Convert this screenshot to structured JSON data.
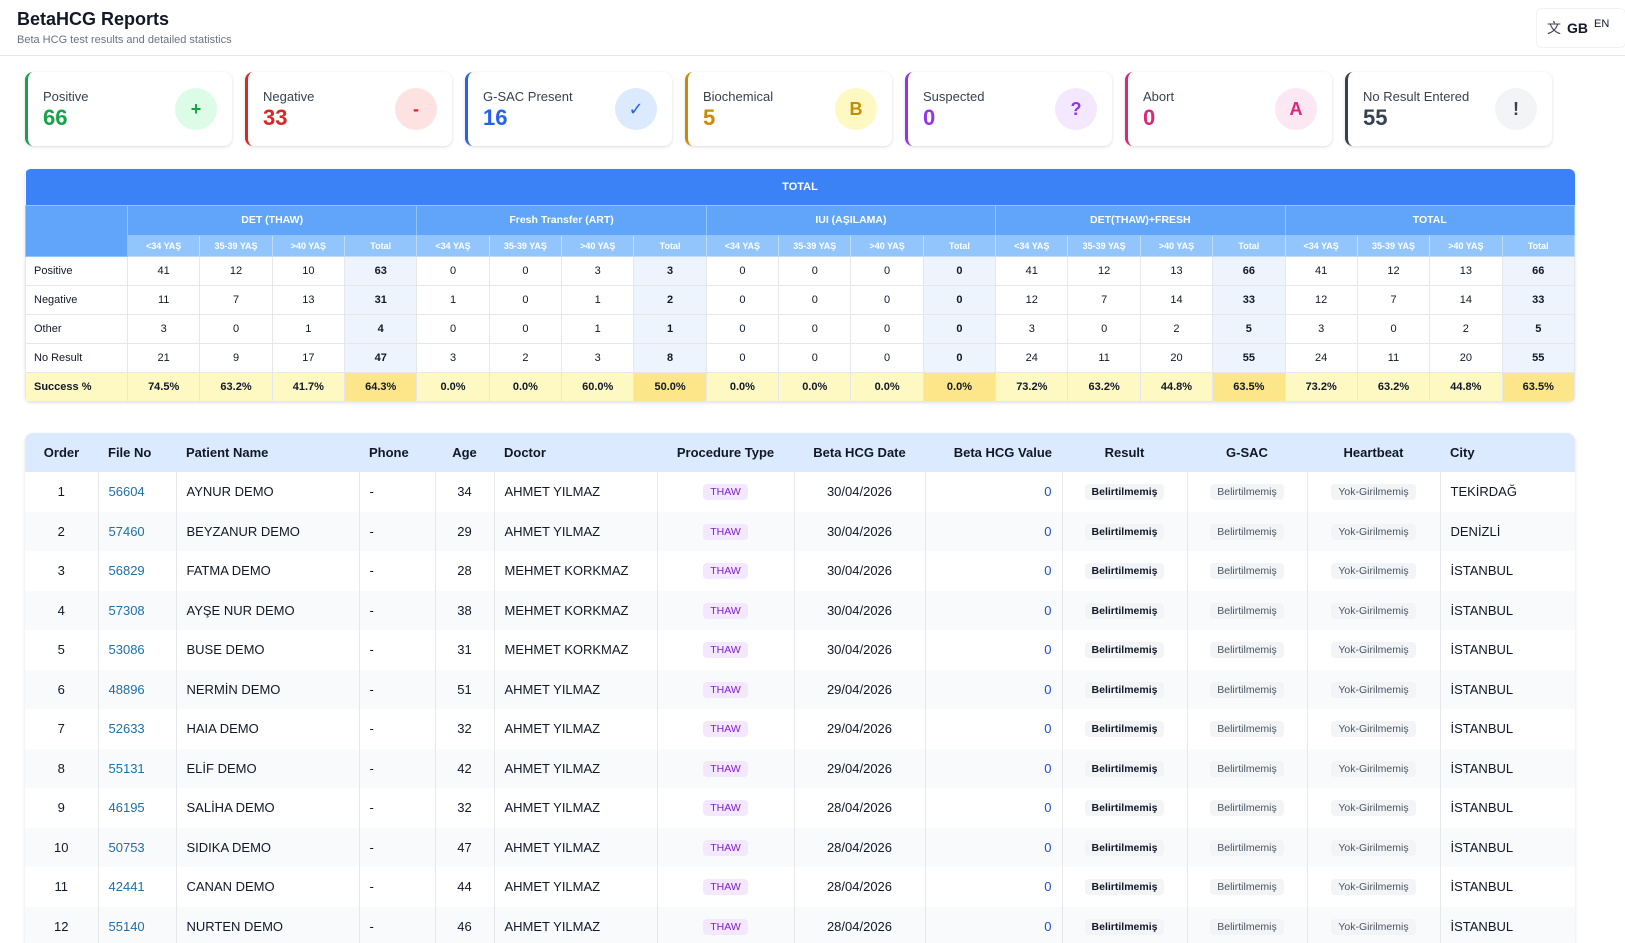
{
  "header": {
    "title": "BetaHCG Reports",
    "subtitle": "Beta HCG test results and detailed statistics",
    "lang_icon": "translate-icon",
    "lang_flag": "GB",
    "lang_code": "EN"
  },
  "cards": [
    {
      "label": "Positive",
      "value": "66",
      "icon": "+",
      "color": "#16a34a",
      "bg": "#dcfce7"
    },
    {
      "label": "Negative",
      "value": "33",
      "icon": "-",
      "color": "#dc2626",
      "bg": "#fee2e2"
    },
    {
      "label": "G-SAC Present",
      "value": "16",
      "icon": "✓",
      "color": "#2563eb",
      "bg": "#dbeafe"
    },
    {
      "label": "Biochemical",
      "value": "5",
      "icon": "B",
      "color": "#ca8a04",
      "bg": "#fef9c3"
    },
    {
      "label": "Suspected",
      "value": "0",
      "icon": "?",
      "color": "#9333ea",
      "bg": "#f3e8ff"
    },
    {
      "label": "Abort",
      "value": "0",
      "icon": "A",
      "color": "#db2777",
      "bg": "#fce7f3"
    },
    {
      "label": "No Result Entered",
      "value": "55",
      "icon": "!",
      "color": "#374151",
      "bg": "#f3f4f6"
    }
  ],
  "stats": {
    "title": "TOTAL",
    "groups": [
      "DET (THAW)",
      "Fresh Transfer (ART)",
      "IUI (AŞILAMA)",
      "DET(THAW)+FRESH",
      "TOTAL"
    ],
    "subheaders": [
      "<34 YAŞ",
      "35-39 YAŞ",
      ">40 YAŞ",
      "Total"
    ],
    "rows": [
      {
        "label": "Positive",
        "values": [
          "41",
          "12",
          "10",
          "63",
          "0",
          "0",
          "3",
          "3",
          "0",
          "0",
          "0",
          "0",
          "41",
          "12",
          "13",
          "66",
          "41",
          "12",
          "13",
          "66"
        ]
      },
      {
        "label": "Negative",
        "values": [
          "11",
          "7",
          "13",
          "31",
          "1",
          "0",
          "1",
          "2",
          "0",
          "0",
          "0",
          "0",
          "12",
          "7",
          "14",
          "33",
          "12",
          "7",
          "14",
          "33"
        ]
      },
      {
        "label": "Other",
        "values": [
          "3",
          "0",
          "1",
          "4",
          "0",
          "0",
          "1",
          "1",
          "0",
          "0",
          "0",
          "0",
          "3",
          "0",
          "2",
          "5",
          "3",
          "0",
          "2",
          "5"
        ]
      },
      {
        "label": "No Result",
        "values": [
          "21",
          "9",
          "17",
          "47",
          "3",
          "2",
          "3",
          "8",
          "0",
          "0",
          "0",
          "0",
          "24",
          "11",
          "20",
          "55",
          "24",
          "11",
          "20",
          "55"
        ]
      },
      {
        "label": "Success %",
        "values": [
          "74.5%",
          "63.2%",
          "41.7%",
          "64.3%",
          "0.0%",
          "0.0%",
          "60.0%",
          "50.0%",
          "0.0%",
          "0.0%",
          "0.0%",
          "0.0%",
          "73.2%",
          "63.2%",
          "44.8%",
          "63.5%",
          "73.2%",
          "63.2%",
          "44.8%",
          "63.5%"
        ]
      }
    ]
  },
  "patients": {
    "columns": [
      "Order",
      "File No",
      "Patient Name",
      "Phone",
      "Age",
      "Doctor",
      "Procedure Type",
      "Beta HCG Date",
      "Beta HCG Value",
      "Result",
      "G-SAC",
      "Heartbeat",
      "City"
    ],
    "rows": [
      {
        "order": "1",
        "file": "56604",
        "name": "AYNUR DEMO",
        "phone": "-",
        "age": "34",
        "doctor": "AHMET YILMAZ",
        "proc": "THAW",
        "date": "30/04/2026",
        "value": "0",
        "result": "Belirtilmemiş",
        "gsac": "Belirtilmemiş",
        "heart": "Yok-Girilmemiş",
        "city": "TEKİRDAĞ"
      },
      {
        "order": "2",
        "file": "57460",
        "name": "BEYZANUR DEMO",
        "phone": "-",
        "age": "29",
        "doctor": "AHMET YILMAZ",
        "proc": "THAW",
        "date": "30/04/2026",
        "value": "0",
        "result": "Belirtilmemiş",
        "gsac": "Belirtilmemiş",
        "heart": "Yok-Girilmemiş",
        "city": "DENİZLİ"
      },
      {
        "order": "3",
        "file": "56829",
        "name": "FATMA DEMO",
        "phone": "-",
        "age": "28",
        "doctor": "MEHMET KORKMAZ",
        "proc": "THAW",
        "date": "30/04/2026",
        "value": "0",
        "result": "Belirtilmemiş",
        "gsac": "Belirtilmemiş",
        "heart": "Yok-Girilmemiş",
        "city": "İSTANBUL"
      },
      {
        "order": "4",
        "file": "57308",
        "name": "AYŞE NUR DEMO",
        "phone": "-",
        "age": "38",
        "doctor": "MEHMET KORKMAZ",
        "proc": "THAW",
        "date": "30/04/2026",
        "value": "0",
        "result": "Belirtilmemiş",
        "gsac": "Belirtilmemiş",
        "heart": "Yok-Girilmemiş",
        "city": "İSTANBUL"
      },
      {
        "order": "5",
        "file": "53086",
        "name": "BUSE DEMO",
        "phone": "-",
        "age": "31",
        "doctor": "MEHMET KORKMAZ",
        "proc": "THAW",
        "date": "30/04/2026",
        "value": "0",
        "result": "Belirtilmemiş",
        "gsac": "Belirtilmemiş",
        "heart": "Yok-Girilmemiş",
        "city": "İSTANBUL"
      },
      {
        "order": "6",
        "file": "48896",
        "name": "NERMİN DEMO",
        "phone": "-",
        "age": "51",
        "doctor": "AHMET YILMAZ",
        "proc": "THAW",
        "date": "29/04/2026",
        "value": "0",
        "result": "Belirtilmemiş",
        "gsac": "Belirtilmemiş",
        "heart": "Yok-Girilmemiş",
        "city": "İSTANBUL"
      },
      {
        "order": "7",
        "file": "52633",
        "name": "HAIA DEMO",
        "phone": "-",
        "age": "32",
        "doctor": "AHMET YILMAZ",
        "proc": "THAW",
        "date": "29/04/2026",
        "value": "0",
        "result": "Belirtilmemiş",
        "gsac": "Belirtilmemiş",
        "heart": "Yok-Girilmemiş",
        "city": "İSTANBUL"
      },
      {
        "order": "8",
        "file": "55131",
        "name": "ELİF DEMO",
        "phone": "-",
        "age": "42",
        "doctor": "AHMET YILMAZ",
        "proc": "THAW",
        "date": "29/04/2026",
        "value": "0",
        "result": "Belirtilmemiş",
        "gsac": "Belirtilmemiş",
        "heart": "Yok-Girilmemiş",
        "city": "İSTANBUL"
      },
      {
        "order": "9",
        "file": "46195",
        "name": "SALİHA DEMO",
        "phone": "-",
        "age": "32",
        "doctor": "AHMET YILMAZ",
        "proc": "THAW",
        "date": "28/04/2026",
        "value": "0",
        "result": "Belirtilmemiş",
        "gsac": "Belirtilmemiş",
        "heart": "Yok-Girilmemiş",
        "city": "İSTANBUL"
      },
      {
        "order": "10",
        "file": "50753",
        "name": "SIDIKA DEMO",
        "phone": "-",
        "age": "47",
        "doctor": "AHMET YILMAZ",
        "proc": "THAW",
        "date": "28/04/2026",
        "value": "0",
        "result": "Belirtilmemiş",
        "gsac": "Belirtilmemiş",
        "heart": "Yok-Girilmemiş",
        "city": "İSTANBUL"
      },
      {
        "order": "11",
        "file": "42441",
        "name": "CANAN DEMO",
        "phone": "-",
        "age": "44",
        "doctor": "AHMET YILMAZ",
        "proc": "THAW",
        "date": "28/04/2026",
        "value": "0",
        "result": "Belirtilmemiş",
        "gsac": "Belirtilmemiş",
        "heart": "Yok-Girilmemiş",
        "city": "İSTANBUL"
      },
      {
        "order": "12",
        "file": "55140",
        "name": "NURTEN DEMO",
        "phone": "-",
        "age": "46",
        "doctor": "AHMET YILMAZ",
        "proc": "THAW",
        "date": "28/04/2026",
        "value": "0",
        "result": "Belirtilmemiş",
        "gsac": "Belirtilmemiş",
        "heart": "Yok-Girilmemiş",
        "city": "İSTANBUL"
      }
    ]
  }
}
